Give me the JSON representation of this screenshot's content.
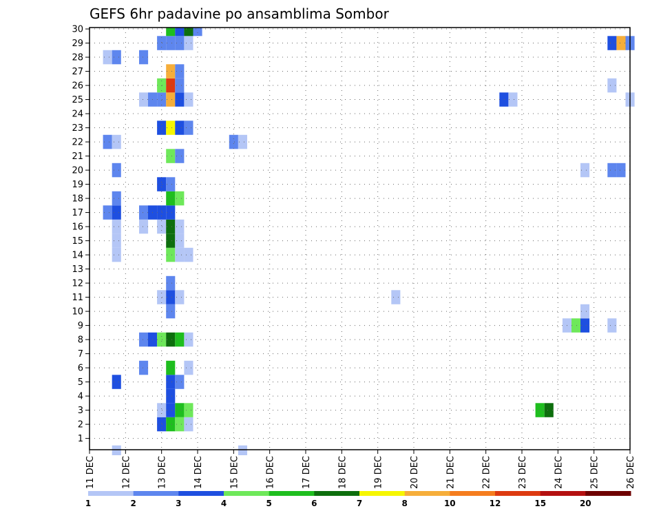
{
  "chart_data": {
    "type": "heatmap",
    "title": "GEFS 6hr padavine po ansamblima Sombor",
    "x_ticks": [
      "11 DEC",
      "12 DEC",
      "13 DEC",
      "14 DEC",
      "15 DEC",
      "16 DEC",
      "17 DEC",
      "18 DEC",
      "19 DEC",
      "20 DEC",
      "21 DEC",
      "22 DEC",
      "23 DEC",
      "24 DEC",
      "25 DEC",
      "26 DEC"
    ],
    "x_range_days": [
      11,
      26
    ],
    "y_ticks": [
      "1",
      "2",
      "3",
      "4",
      "5",
      "6",
      "7",
      "8",
      "9",
      "10",
      "11",
      "12",
      "13",
      "14",
      "15",
      "16",
      "17",
      "18",
      "19",
      "20",
      "21",
      "22",
      "23",
      "24",
      "25",
      "26",
      "27",
      "28",
      "29",
      "30"
    ],
    "y_range": [
      0.2,
      30.1
    ],
    "grid": true,
    "color_scale": {
      "levels": [
        "1",
        "2",
        "3",
        "4",
        "5",
        "6",
        "7",
        "8",
        "10",
        "12",
        "15",
        "20"
      ],
      "colors": [
        "#b4c6f6",
        "#5e86ee",
        "#1e4fe0",
        "#6ee85a",
        "#1ebe1e",
        "#0d6e0d",
        "#f6f600",
        "#f6ae3a",
        "#f57d1e",
        "#dd3a10",
        "#b41010",
        "#6e0000"
      ]
    },
    "color_classes": [
      "#b4c6f6",
      "#5e86ee",
      "#1e4fe0",
      "#6ee85a",
      "#1ebe1e",
      "#0d6e0d",
      "#f6f600",
      "#f6ae3a",
      "#f57d1e",
      "#dd3a10",
      "#b41010",
      "#6e0000"
    ],
    "cells": [
      {
        "x": 11.75,
        "y": 0,
        "c": 0
      },
      {
        "x": 15.25,
        "y": 0,
        "c": 0
      },
      {
        "x": 13.0,
        "y": 2,
        "c": 2
      },
      {
        "x": 13.25,
        "y": 2,
        "c": 4
      },
      {
        "x": 13.5,
        "y": 2,
        "c": 3
      },
      {
        "x": 13.75,
        "y": 2,
        "c": 0
      },
      {
        "x": 13.0,
        "y": 3,
        "c": 0
      },
      {
        "x": 13.25,
        "y": 3,
        "c": 2
      },
      {
        "x": 13.5,
        "y": 3,
        "c": 4
      },
      {
        "x": 13.75,
        "y": 3,
        "c": 3
      },
      {
        "x": 23.5,
        "y": 3,
        "c": 4
      },
      {
        "x": 23.75,
        "y": 3,
        "c": 5
      },
      {
        "x": 13.25,
        "y": 4,
        "c": 2
      },
      {
        "x": 11.75,
        "y": 5,
        "c": 2
      },
      {
        "x": 13.25,
        "y": 5,
        "c": 2
      },
      {
        "x": 13.5,
        "y": 5,
        "c": 1
      },
      {
        "x": 12.5,
        "y": 6,
        "c": 1
      },
      {
        "x": 13.25,
        "y": 6,
        "c": 4
      },
      {
        "x": 13.75,
        "y": 6,
        "c": 0
      },
      {
        "x": 12.5,
        "y": 8,
        "c": 1
      },
      {
        "x": 12.75,
        "y": 8,
        "c": 2
      },
      {
        "x": 13.0,
        "y": 8,
        "c": 3
      },
      {
        "x": 13.25,
        "y": 8,
        "c": 5
      },
      {
        "x": 13.5,
        "y": 8,
        "c": 4
      },
      {
        "x": 13.75,
        "y": 8,
        "c": 0
      },
      {
        "x": 24.25,
        "y": 9,
        "c": 0
      },
      {
        "x": 24.5,
        "y": 9,
        "c": 3
      },
      {
        "x": 24.75,
        "y": 9,
        "c": 2
      },
      {
        "x": 25.5,
        "y": 9,
        "c": 0
      },
      {
        "x": 13.25,
        "y": 10,
        "c": 1
      },
      {
        "x": 24.75,
        "y": 10,
        "c": 0
      },
      {
        "x": 13.0,
        "y": 11,
        "c": 0
      },
      {
        "x": 13.25,
        "y": 11,
        "c": 2
      },
      {
        "x": 13.5,
        "y": 11,
        "c": 0
      },
      {
        "x": 19.5,
        "y": 11,
        "c": 0
      },
      {
        "x": 13.25,
        "y": 12,
        "c": 1
      },
      {
        "x": 11.75,
        "y": 14,
        "c": 0
      },
      {
        "x": 13.25,
        "y": 14,
        "c": 3
      },
      {
        "x": 13.5,
        "y": 14,
        "c": 0
      },
      {
        "x": 13.75,
        "y": 14,
        "c": 0
      },
      {
        "x": 11.75,
        "y": 15,
        "c": 0
      },
      {
        "x": 13.25,
        "y": 15,
        "c": 5
      },
      {
        "x": 13.5,
        "y": 15,
        "c": 0
      },
      {
        "x": 11.75,
        "y": 16,
        "c": 0
      },
      {
        "x": 12.5,
        "y": 16,
        "c": 0
      },
      {
        "x": 13.0,
        "y": 16,
        "c": 0
      },
      {
        "x": 13.25,
        "y": 16,
        "c": 5
      },
      {
        "x": 13.5,
        "y": 16,
        "c": 0
      },
      {
        "x": 11.5,
        "y": 17,
        "c": 1
      },
      {
        "x": 11.75,
        "y": 17,
        "c": 2
      },
      {
        "x": 12.5,
        "y": 17,
        "c": 1
      },
      {
        "x": 12.75,
        "y": 17,
        "c": 2
      },
      {
        "x": 13.0,
        "y": 17,
        "c": 2
      },
      {
        "x": 13.25,
        "y": 17,
        "c": 2
      },
      {
        "x": 11.75,
        "y": 18,
        "c": 1
      },
      {
        "x": 13.25,
        "y": 18,
        "c": 4
      },
      {
        "x": 13.5,
        "y": 18,
        "c": 3
      },
      {
        "x": 13.0,
        "y": 19,
        "c": 2
      },
      {
        "x": 13.25,
        "y": 19,
        "c": 1
      },
      {
        "x": 11.75,
        "y": 20,
        "c": 1
      },
      {
        "x": 24.75,
        "y": 20,
        "c": 0
      },
      {
        "x": 25.5,
        "y": 20,
        "c": 1
      },
      {
        "x": 25.75,
        "y": 20,
        "c": 1
      },
      {
        "x": 13.25,
        "y": 21,
        "c": 3
      },
      {
        "x": 13.5,
        "y": 21,
        "c": 1
      },
      {
        "x": 11.5,
        "y": 22,
        "c": 1
      },
      {
        "x": 11.75,
        "y": 22,
        "c": 0
      },
      {
        "x": 15.0,
        "y": 22,
        "c": 1
      },
      {
        "x": 15.25,
        "y": 22,
        "c": 0
      },
      {
        "x": 13.0,
        "y": 23,
        "c": 2
      },
      {
        "x": 13.25,
        "y": 23,
        "c": 6
      },
      {
        "x": 13.5,
        "y": 23,
        "c": 2
      },
      {
        "x": 13.75,
        "y": 23,
        "c": 1
      },
      {
        "x": 12.5,
        "y": 25,
        "c": 0
      },
      {
        "x": 12.75,
        "y": 25,
        "c": 1
      },
      {
        "x": 13.0,
        "y": 25,
        "c": 1
      },
      {
        "x": 13.25,
        "y": 25,
        "c": 7
      },
      {
        "x": 13.5,
        "y": 25,
        "c": 2
      },
      {
        "x": 13.75,
        "y": 25,
        "c": 0
      },
      {
        "x": 22.5,
        "y": 25,
        "c": 2
      },
      {
        "x": 22.75,
        "y": 25,
        "c": 0
      },
      {
        "x": 26.0,
        "y": 25,
        "c": 0
      },
      {
        "x": 13.0,
        "y": 26,
        "c": 3
      },
      {
        "x": 13.25,
        "y": 26,
        "c": 9
      },
      {
        "x": 13.5,
        "y": 26,
        "c": 1
      },
      {
        "x": 25.5,
        "y": 26,
        "c": 0
      },
      {
        "x": 13.25,
        "y": 27,
        "c": 7
      },
      {
        "x": 13.5,
        "y": 27,
        "c": 1
      },
      {
        "x": 11.5,
        "y": 28,
        "c": 0
      },
      {
        "x": 11.75,
        "y": 28,
        "c": 1
      },
      {
        "x": 12.5,
        "y": 28,
        "c": 1
      },
      {
        "x": 13.0,
        "y": 29,
        "c": 1
      },
      {
        "x": 13.25,
        "y": 29,
        "c": 1
      },
      {
        "x": 13.5,
        "y": 29,
        "c": 1
      },
      {
        "x": 13.75,
        "y": 29,
        "c": 0
      },
      {
        "x": 25.5,
        "y": 29,
        "c": 2
      },
      {
        "x": 25.75,
        "y": 29,
        "c": 7
      },
      {
        "x": 26.0,
        "y": 29,
        "c": 1
      },
      {
        "x": 13.25,
        "y": 30,
        "c": 4
      },
      {
        "x": 13.5,
        "y": 30,
        "c": 2
      },
      {
        "x": 13.75,
        "y": 30,
        "c": 5
      },
      {
        "x": 14.0,
        "y": 30,
        "c": 1
      }
    ]
  }
}
